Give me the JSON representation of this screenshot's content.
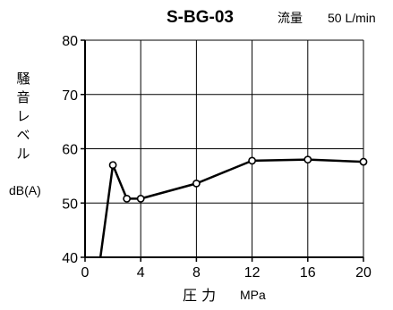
{
  "chart_data": {
    "type": "line",
    "title": "S-BG-03",
    "flow_label": "流量",
    "flow_value": "50 L/min",
    "ylabel_jp": [
      "騒",
      "音",
      "レ",
      "ベ",
      "ル"
    ],
    "ylabel_unit": "dB(A)",
    "xlabel_jp": "圧 力",
    "xlabel_unit": "MPa",
    "xlim": [
      0,
      20
    ],
    "ylim": [
      40,
      80
    ],
    "x_ticks": [
      0,
      4,
      8,
      12,
      16,
      20
    ],
    "y_ticks": [
      40,
      50,
      60,
      70,
      80
    ],
    "x_ticks_labels": [
      "0",
      "4",
      "8",
      "12",
      "16",
      "20"
    ],
    "y_ticks_labels": [
      "40",
      "50",
      "60",
      "70",
      "80"
    ],
    "grid": true,
    "line": {
      "x": [
        1.0,
        2.0,
        3.0,
        4.0,
        8.0,
        12.0,
        16.0,
        20.0
      ],
      "y": [
        38.0,
        57.0,
        50.8,
        50.8,
        53.6,
        57.8,
        58.0,
        57.6
      ]
    },
    "markers": {
      "x": [
        2.0,
        3.0,
        4.0,
        8.0,
        12.0,
        16.0,
        20.0
      ],
      "y": [
        57.0,
        50.8,
        50.8,
        53.6,
        57.8,
        58.0,
        57.6
      ]
    },
    "line_color": "#000000"
  }
}
